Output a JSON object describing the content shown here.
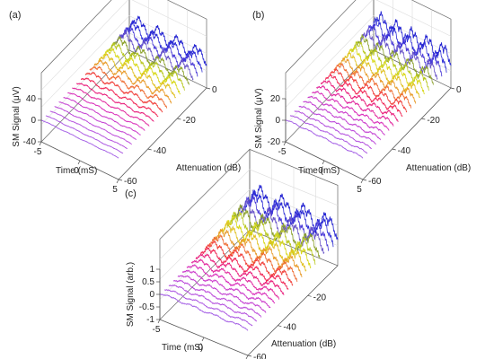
{
  "chart_data": [
    {
      "type": "line",
      "panel_label": "(a)",
      "ylabel": "SM Signal (μV)",
      "xlabel": "Time (mS)",
      "zlabel": "Attenuation (dB)",
      "xlim": [
        -5,
        5
      ],
      "ylim": [
        -60,
        0
      ],
      "zlim": [
        -40,
        40
      ],
      "x_ticks": [
        "-5",
        "0",
        "5"
      ],
      "y_ticks": [
        "0",
        "-20",
        "-40",
        "-60"
      ],
      "z_ticks": [
        "40",
        "0",
        "-40"
      ],
      "attenuation_db": [
        0,
        -3,
        -6,
        -9,
        -12,
        -15,
        -18,
        -21,
        -24,
        -27,
        -30,
        -33,
        -36,
        -39,
        -42,
        -45,
        -48,
        -51,
        -54,
        -57,
        -60
      ],
      "peak_amplitude": [
        30,
        29,
        28,
        27,
        26,
        24,
        22,
        20,
        17,
        14,
        11,
        8,
        6,
        5,
        4,
        3.5,
        3,
        2.5,
        2,
        1.8,
        1.5
      ],
      "pulse_count": 4,
      "grid": true
    },
    {
      "type": "line",
      "panel_label": "(b)",
      "ylabel": "SM Signal (μV)",
      "xlabel": "Time (mS)",
      "zlabel": "Attenuation (dB)",
      "xlim": [
        -5,
        5
      ],
      "ylim": [
        -60,
        0
      ],
      "zlim": [
        -20,
        20
      ],
      "x_ticks": [
        "-5",
        "0",
        "5"
      ],
      "y_ticks": [
        "0",
        "-20",
        "-40",
        "-60"
      ],
      "z_ticks": [
        "20",
        "0",
        "-20"
      ],
      "attenuation_db": [
        0,
        -3,
        -6,
        -9,
        -12,
        -15,
        -18,
        -21,
        -24,
        -27,
        -30,
        -33,
        -36,
        -39,
        -42,
        -45,
        -48,
        -51,
        -54,
        -57,
        -60
      ],
      "peak_amplitude": [
        18,
        17,
        16,
        15,
        14,
        13,
        12,
        11,
        10,
        9,
        8,
        7,
        6,
        5,
        4,
        3.5,
        3,
        2.5,
        2,
        1.8,
        1.5
      ],
      "pulse_count": 5,
      "grid": true
    },
    {
      "type": "line",
      "panel_label": "(c)",
      "ylabel": "SM Signal (arb.)",
      "xlabel": "Time (mS)",
      "zlabel": "Attenuation (dB)",
      "xlim": [
        -5,
        5
      ],
      "ylim": [
        -60,
        0
      ],
      "zlim": [
        -1,
        1
      ],
      "x_ticks": [
        "-5",
        "0",
        "5"
      ],
      "y_ticks": [
        "-20",
        "-40",
        "-60"
      ],
      "z_ticks": [
        "1",
        "0.5",
        "0",
        "-0.5",
        "-1"
      ],
      "attenuation_db": [
        0,
        -3,
        -6,
        -9,
        -12,
        -15,
        -18,
        -21,
        -24,
        -27,
        -30,
        -33,
        -36,
        -39,
        -42,
        -45,
        -48,
        -51,
        -54,
        -57,
        -60
      ],
      "peak_amplitude": [
        0.9,
        0.9,
        0.88,
        0.86,
        0.84,
        0.8,
        0.76,
        0.7,
        0.62,
        0.55,
        0.48,
        0.4,
        0.34,
        0.28,
        0.24,
        0.2,
        0.17,
        0.15,
        0.13,
        0.11,
        0.1
      ],
      "pulse_count": 4,
      "grid": true
    }
  ],
  "trace_colors": [
    "#1f1fd1",
    "#2e2ed6",
    "#4b3bd8",
    "#6a55c8",
    "#8aa02a",
    "#b8c81e",
    "#d8d81a",
    "#e0c020",
    "#e89a28",
    "#ee6a30",
    "#f03a34",
    "#f02050",
    "#e81878",
    "#e0209a",
    "#d828b8",
    "#c830c8",
    "#c038d0",
    "#b840d8",
    "#b048dc",
    "#a850e0",
    "#a058e4"
  ]
}
